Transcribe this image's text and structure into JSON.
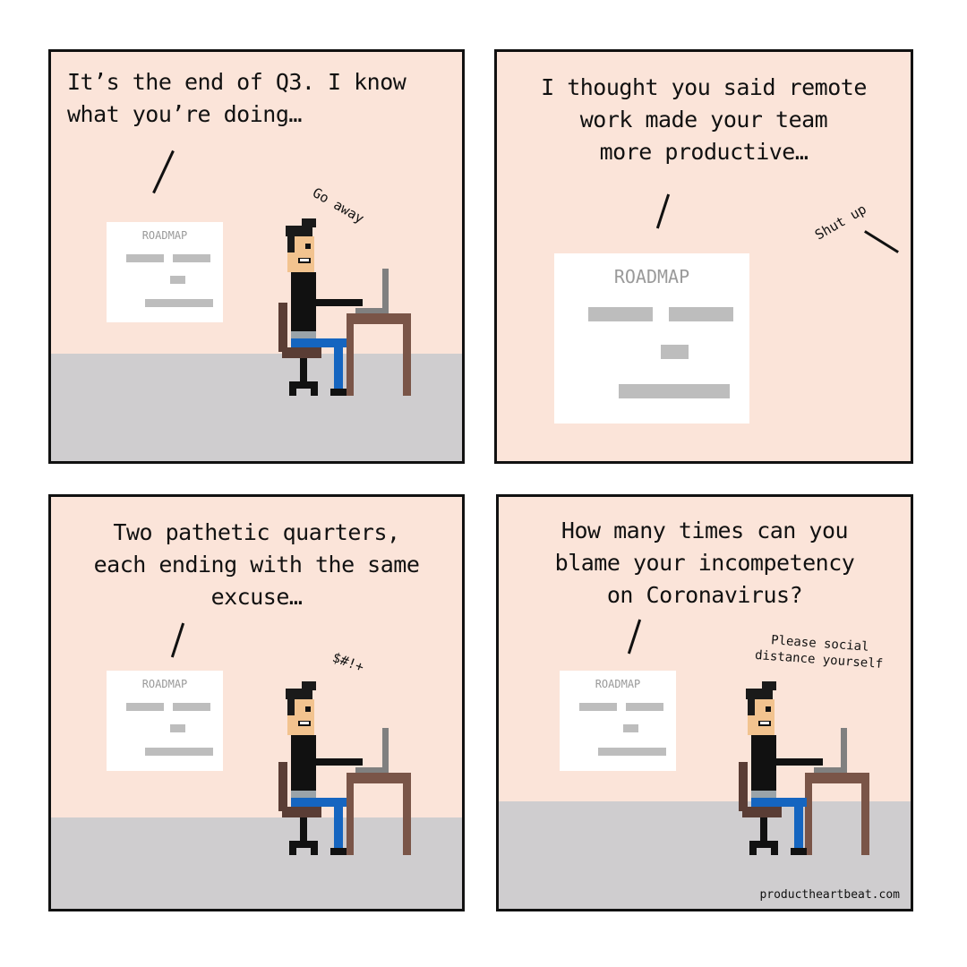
{
  "colors": {
    "wall": "#fbe4d9",
    "floor": "#cfcdcf",
    "border": "#111111",
    "hair": "#1a1a1a",
    "skin": "#f2c38f",
    "shirt": "#111111",
    "belt": "#9aa3a9",
    "pants": "#1565c0",
    "desk": "#7a5548",
    "chair": "#5a3d35",
    "laptop": "#808080",
    "roadmap_bar": "#bdbdbd",
    "roadmap_title": "#9a9a9a"
  },
  "panels": [
    {
      "caption_lines": [
        "It’s the end of Q3. I know",
        "what you’re doing…"
      ],
      "roadmap_title": "ROADMAP",
      "remark": "Go away"
    },
    {
      "caption_lines": [
        "I thought you said remote",
        "work made your team",
        "more productive…"
      ],
      "roadmap_title": "ROADMAP",
      "remark": "Shut up"
    },
    {
      "caption_lines": [
        "Two pathetic quarters,",
        "each ending with the same",
        "excuse…"
      ],
      "roadmap_title": "ROADMAP",
      "remark": "$#!+"
    },
    {
      "caption_lines": [
        "How many times can you",
        "blame your incompetency",
        "on Coronavirus?"
      ],
      "roadmap_title": "ROADMAP",
      "remark_lines": [
        "Please social",
        "distance yourself"
      ],
      "credit": "productheartbeat.com"
    }
  ]
}
